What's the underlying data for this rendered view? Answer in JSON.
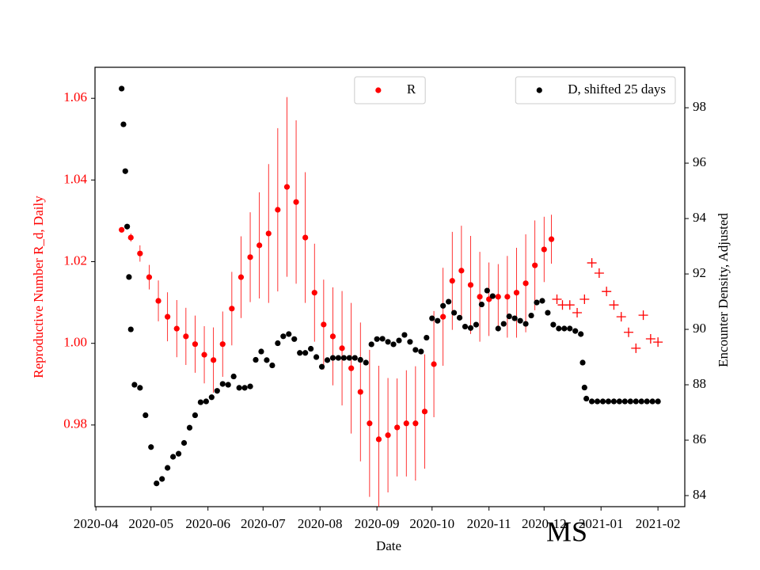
{
  "chart_data": {
    "type": "scatter",
    "x_label": "Date",
    "y_label": "Reproductive Number R_d, Daily",
    "y2_label": "Encounter Density, Adjusted",
    "annotation": "MS",
    "xlim": [
      -0.5,
      320.6
    ],
    "xticks": [
      {
        "value": 0,
        "label": "2020-04"
      },
      {
        "value": 30,
        "label": "2020-05"
      },
      {
        "value": 61,
        "label": "2020-06"
      },
      {
        "value": 91,
        "label": "2020-07"
      },
      {
        "value": 122,
        "label": "2020-08"
      },
      {
        "value": 153,
        "label": "2020-09"
      },
      {
        "value": 183,
        "label": "2020-10"
      },
      {
        "value": 214,
        "label": "2020-11"
      },
      {
        "value": 244,
        "label": "2020-12"
      },
      {
        "value": 275,
        "label": "2021-01"
      },
      {
        "value": 306,
        "label": "2021-02"
      }
    ],
    "ylim": [
      0.96,
      1.0676
    ],
    "yticks": [
      0.98,
      {
        "value": 1.0,
        "label": "1.00"
      },
      1.02,
      1.04,
      1.06
    ],
    "y2lim": [
      83.6,
      99.46
    ],
    "y2ticks": [
      84,
      86,
      88,
      90,
      92,
      94,
      96,
      98
    ],
    "y_color": "#ff0000",
    "series": [
      {
        "name": "R",
        "color": "#ff0000",
        "marker": "dot",
        "legend": "upper center",
        "x": [
          14,
          19,
          24,
          29,
          34,
          39,
          44,
          49,
          54,
          59,
          64,
          69,
          74,
          79,
          84,
          89,
          94,
          99,
          104,
          109,
          114,
          119,
          124,
          129,
          134,
          139,
          144,
          149,
          154,
          159,
          164,
          169,
          174,
          179,
          184,
          189,
          194,
          199,
          204,
          209,
          214,
          219,
          224,
          229,
          234,
          239,
          244,
          248
        ],
        "values": [
          1.0278,
          1.0259,
          1.022,
          1.0162,
          1.0104,
          1.0065,
          1.0036,
          1.0017,
          0.9998,
          0.9972,
          0.9959,
          0.9998,
          1.0085,
          1.0162,
          1.0211,
          1.024,
          1.0269,
          1.0327,
          1.0383,
          1.0346,
          1.0259,
          1.0124,
          1.0046,
          1.0017,
          0.9988,
          0.9939,
          0.9881,
          0.9804,
          0.9765,
          0.9775,
          0.9794,
          0.9804,
          0.9804,
          0.9833,
          0.9949,
          1.0065,
          1.0153,
          1.0178,
          1.0143,
          1.0114,
          1.0108,
          1.0114,
          1.0114,
          1.0124,
          1.0147,
          1.0191,
          1.023,
          1.0255
        ],
        "errors": [
          0.0005,
          0.001,
          0.002,
          0.003,
          0.005,
          0.006,
          0.007,
          0.007,
          0.007,
          0.007,
          0.008,
          0.008,
          0.009,
          0.01,
          0.011,
          0.013,
          0.017,
          0.02,
          0.022,
          0.02,
          0.016,
          0.012,
          0.011,
          0.012,
          0.014,
          0.016,
          0.017,
          0.018,
          0.018,
          0.014,
          0.012,
          0.013,
          0.014,
          0.014,
          0.013,
          0.012,
          0.012,
          0.011,
          0.012,
          0.011,
          0.009,
          0.008,
          0.01,
          0.011,
          0.012,
          0.011,
          0.008,
          0.006
        ]
      },
      {
        "color": "#ff0000",
        "marker": "cross",
        "x": [
          251,
          254,
          258,
          262,
          266,
          270,
          274,
          278,
          282,
          286,
          290,
          294,
          298,
          302,
          306
        ],
        "values": [
          1.0108,
          1.0094,
          1.0094,
          1.0075,
          1.0108,
          1.0197,
          1.0172,
          1.0127,
          1.0094,
          1.0065,
          1.0027,
          0.9988,
          1.0069,
          1.0011,
          1.0003
        ]
      },
      {
        "name": "D, shifted 25 days",
        "color": "#000000",
        "marker": "dot",
        "axis": "y2",
        "legend": "upper right",
        "x": [
          14,
          15,
          16,
          17,
          18,
          19,
          21,
          24,
          27,
          30,
          33,
          36,
          39,
          42,
          45,
          48,
          51,
          54,
          57,
          60,
          63,
          66,
          69,
          72,
          75,
          78,
          81,
          84,
          87,
          90,
          93,
          96,
          99,
          102,
          105,
          108,
          111,
          114,
          117,
          120,
          123,
          126,
          129,
          132,
          135,
          138,
          141,
          144,
          147,
          150,
          153,
          156,
          159,
          162,
          165,
          168,
          171,
          174,
          177,
          180,
          183,
          186,
          189,
          192,
          195,
          198,
          201,
          204,
          207,
          210,
          213,
          216,
          219,
          222,
          225,
          228,
          231,
          234,
          237,
          240,
          243,
          246,
          249,
          252,
          255,
          258,
          261,
          264,
          265,
          266,
          267,
          270,
          273,
          276,
          279,
          282,
          285,
          288,
          291,
          294,
          297,
          300,
          303,
          306
        ],
        "values": [
          98.69,
          97.4,
          95.71,
          93.71,
          91.89,
          90.0,
          88.0,
          87.89,
          86.9,
          85.75,
          84.44,
          84.6,
          85.0,
          85.4,
          85.51,
          85.9,
          86.45,
          86.9,
          87.37,
          87.4,
          87.55,
          87.78,
          88.03,
          88.0,
          88.3,
          87.89,
          87.89,
          87.94,
          88.9,
          89.2,
          88.89,
          88.7,
          89.5,
          89.75,
          89.83,
          89.65,
          89.15,
          89.15,
          89.3,
          89.0,
          88.65,
          88.89,
          88.97,
          88.97,
          88.97,
          88.97,
          88.97,
          88.9,
          88.8,
          89.46,
          89.65,
          89.66,
          89.55,
          89.46,
          89.6,
          89.8,
          89.55,
          89.26,
          89.2,
          89.7,
          90.4,
          90.31,
          90.85,
          91.0,
          90.6,
          90.42,
          90.1,
          90.05,
          90.17,
          90.9,
          91.4,
          91.2,
          90.03,
          90.2,
          90.47,
          90.4,
          90.31,
          90.2,
          90.5,
          90.97,
          91.03,
          90.6,
          90.17,
          90.03,
          90.03,
          90.03,
          89.94,
          89.83,
          88.8,
          87.9,
          87.5,
          87.4,
          87.4,
          87.4,
          87.4,
          87.4,
          87.4,
          87.4,
          87.4,
          87.4,
          87.4,
          87.4,
          87.4,
          87.4
        ]
      }
    ]
  }
}
